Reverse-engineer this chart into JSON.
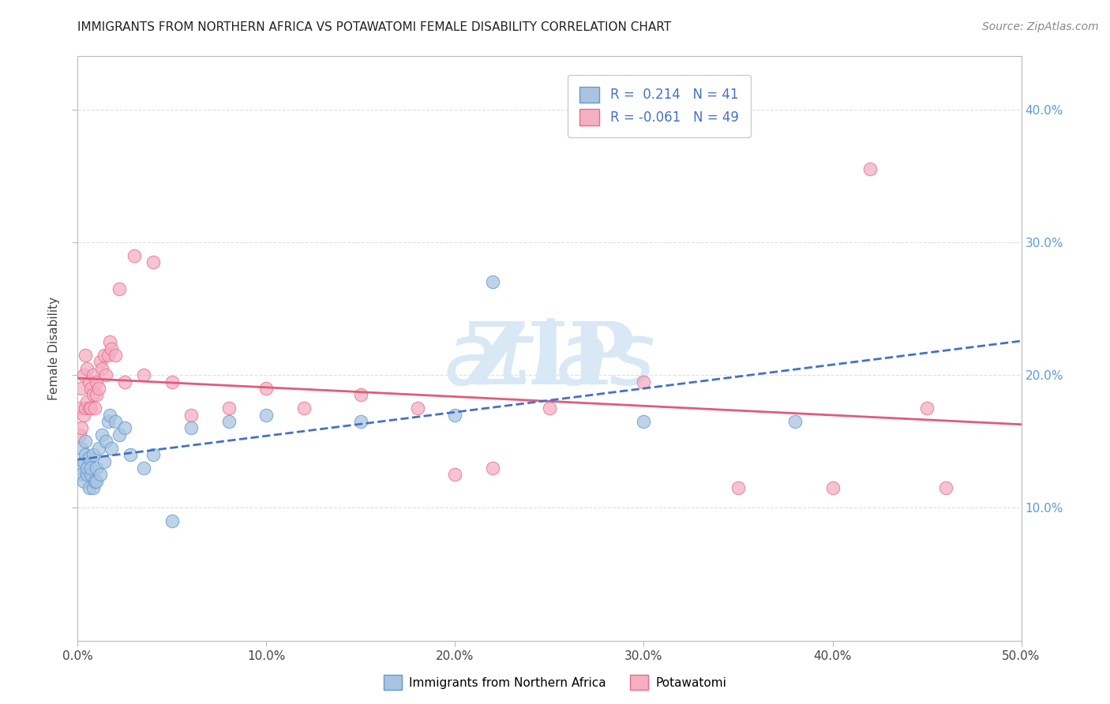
{
  "title": "IMMIGRANTS FROM NORTHERN AFRICA VS POTAWATOMI FEMALE DISABILITY CORRELATION CHART",
  "source": "Source: ZipAtlas.com",
  "xlabel": "",
  "ylabel": "Female Disability",
  "xlim": [
    0,
    0.5
  ],
  "ylim": [
    0.0,
    0.44
  ],
  "xtick_labels": [
    "0.0%",
    "10.0%",
    "20.0%",
    "30.0%",
    "40.0%",
    "50.0%"
  ],
  "xtick_vals": [
    0.0,
    0.1,
    0.2,
    0.3,
    0.4,
    0.5
  ],
  "ytick_labels_right": [
    "10.0%",
    "20.0%",
    "30.0%",
    "40.0%"
  ],
  "ytick_vals": [
    0.1,
    0.2,
    0.3,
    0.4
  ],
  "legend_blue_r": "0.214",
  "legend_blue_n": "41",
  "legend_pink_r": "-0.061",
  "legend_pink_n": "49",
  "blue_color": "#aac4e0",
  "pink_color": "#f4afc3",
  "blue_edge_color": "#5b9bd5",
  "pink_edge_color": "#e86c8a",
  "blue_line_color": "#4472c4",
  "pink_line_color": "#e05c7a",
  "watermark_color": "#d8e8f5",
  "grid_color": "#dddddd",
  "blue_scatter_x": [
    0.001,
    0.002,
    0.002,
    0.003,
    0.003,
    0.004,
    0.004,
    0.005,
    0.005,
    0.006,
    0.006,
    0.007,
    0.007,
    0.008,
    0.008,
    0.009,
    0.01,
    0.01,
    0.011,
    0.012,
    0.013,
    0.014,
    0.015,
    0.016,
    0.017,
    0.018,
    0.02,
    0.022,
    0.025,
    0.028,
    0.035,
    0.04,
    0.05,
    0.06,
    0.08,
    0.1,
    0.15,
    0.2,
    0.22,
    0.3,
    0.38
  ],
  "blue_scatter_y": [
    0.13,
    0.125,
    0.145,
    0.12,
    0.135,
    0.14,
    0.15,
    0.125,
    0.13,
    0.115,
    0.138,
    0.125,
    0.13,
    0.115,
    0.14,
    0.12,
    0.13,
    0.12,
    0.145,
    0.125,
    0.155,
    0.135,
    0.15,
    0.165,
    0.17,
    0.145,
    0.165,
    0.155,
    0.16,
    0.14,
    0.13,
    0.14,
    0.09,
    0.16,
    0.165,
    0.17,
    0.165,
    0.17,
    0.27,
    0.165,
    0.165
  ],
  "pink_scatter_x": [
    0.001,
    0.001,
    0.002,
    0.002,
    0.003,
    0.003,
    0.004,
    0.004,
    0.005,
    0.005,
    0.006,
    0.006,
    0.007,
    0.007,
    0.008,
    0.008,
    0.009,
    0.01,
    0.01,
    0.011,
    0.012,
    0.013,
    0.014,
    0.015,
    0.016,
    0.017,
    0.018,
    0.02,
    0.022,
    0.025,
    0.03,
    0.035,
    0.04,
    0.05,
    0.06,
    0.08,
    0.1,
    0.12,
    0.15,
    0.18,
    0.2,
    0.22,
    0.25,
    0.3,
    0.35,
    0.4,
    0.42,
    0.45,
    0.46
  ],
  "pink_scatter_y": [
    0.155,
    0.175,
    0.16,
    0.19,
    0.17,
    0.2,
    0.175,
    0.215,
    0.18,
    0.205,
    0.175,
    0.195,
    0.19,
    0.175,
    0.185,
    0.2,
    0.175,
    0.185,
    0.195,
    0.19,
    0.21,
    0.205,
    0.215,
    0.2,
    0.215,
    0.225,
    0.22,
    0.215,
    0.265,
    0.195,
    0.29,
    0.2,
    0.285,
    0.195,
    0.17,
    0.175,
    0.19,
    0.175,
    0.185,
    0.175,
    0.125,
    0.13,
    0.175,
    0.195,
    0.115,
    0.115,
    0.355,
    0.175,
    0.115
  ]
}
